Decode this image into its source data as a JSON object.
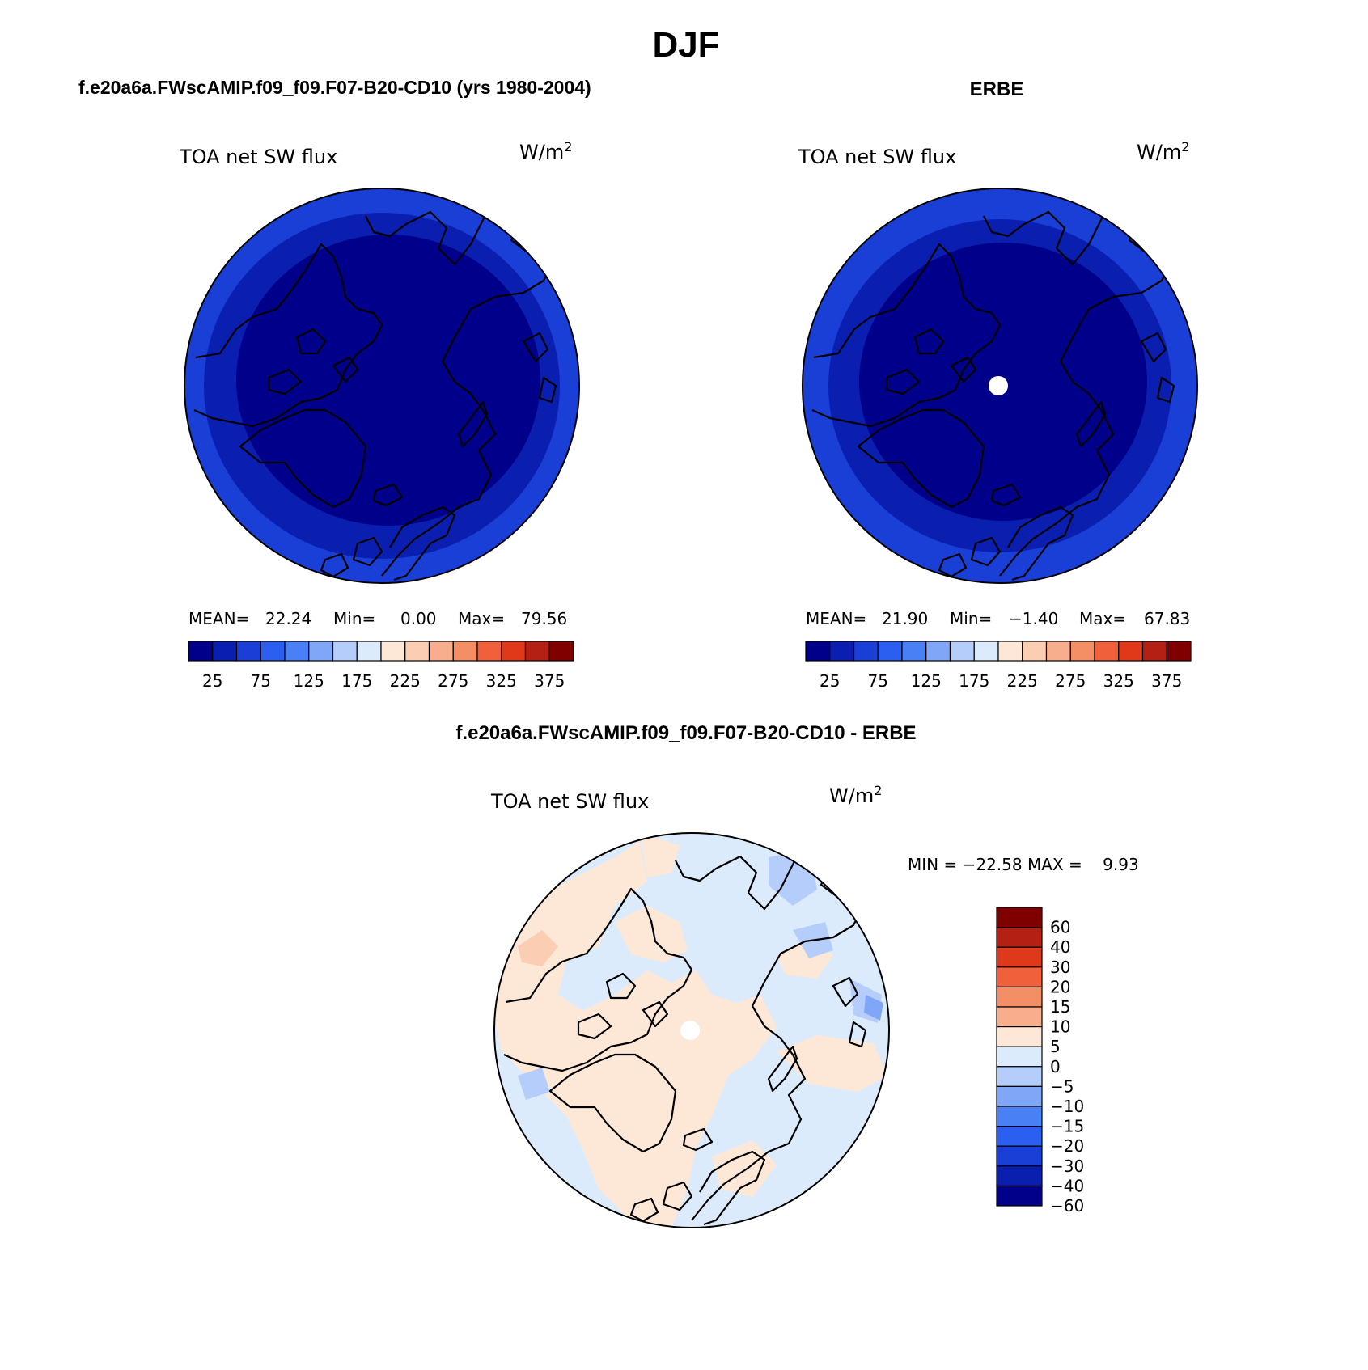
{
  "figure": {
    "season": "DJF",
    "panels": [
      {
        "title": "f.e20a6a.FWscAMIP.f09_f09.F07-B20-CD10 (yrs 1980-2004)",
        "variable": "TOA net SW flux",
        "units_base": "W/m",
        "units_exp": "2",
        "stats": {
          "mean_label": "MEAN=",
          "mean": "22.24",
          "min_label": "Min=",
          "min": "0.00",
          "max_label": "Max=",
          "max": "79.56"
        }
      },
      {
        "title": "ERBE",
        "variable": "TOA net SW flux",
        "units_base": "W/m",
        "units_exp": "2",
        "stats": {
          "mean_label": "MEAN=",
          "mean": "21.90",
          "min_label": "Min=",
          "min": "−1.40",
          "max_label": "Max=",
          "max": "67.83"
        }
      },
      {
        "title": "f.e20a6a.FWscAMIP.f09_f09.F07-B20-CD10 - ERBE",
        "variable": "TOA net SW flux",
        "units_base": "W/m",
        "units_exp": "2",
        "stats_text": "MIN = −22.58 MAX =    9.93"
      }
    ]
  },
  "colorbar_abs": {
    "colors": [
      "#00008b",
      "#0a1fb0",
      "#1a3fd6",
      "#2a5ff0",
      "#4a80f5",
      "#80a6f8",
      "#b4cdfa",
      "#dcebfc",
      "#fde8d8",
      "#fbcdb2",
      "#f8ae8c",
      "#f48e64",
      "#f0603a",
      "#e0391a",
      "#b42014",
      "#800000"
    ],
    "tick_labels": [
      "25",
      "75",
      "125",
      "175",
      "225",
      "275",
      "325",
      "375"
    ]
  },
  "colorbar_diff": {
    "colors": [
      "#800000",
      "#b42014",
      "#e0391a",
      "#f0603a",
      "#f48e64",
      "#f8ae8c",
      "#fde8d8",
      "#dcebfc",
      "#b4cdfa",
      "#80a6f8",
      "#4a80f5",
      "#2a5ff0",
      "#1a3fd6",
      "#0a1fb0",
      "#00008b"
    ],
    "tick_labels": [
      "60",
      "40",
      "30",
      "20",
      "15",
      "10",
      "5",
      "0",
      "−5",
      "−10",
      "−15",
      "−20",
      "−30",
      "−40",
      "−60"
    ]
  },
  "map_colors": {
    "deep": "#00008b",
    "mid": "#0a1fb0",
    "outer": "#1a3fd6",
    "diff_pos": "#fde8d8",
    "diff_neg": "#dcebfc",
    "diff_neg2": "#b4cdfa",
    "diff_neg3": "#80a6f8",
    "diff_pos2": "#fbcdb2",
    "pole_mask": "#ffffff",
    "coast": "#000000"
  }
}
